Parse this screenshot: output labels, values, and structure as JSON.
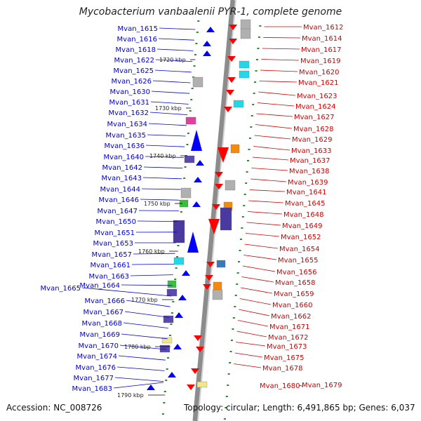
{
  "title": "Mycobacterium vanbaalenii PYR-1, complete genome",
  "accession_text": "Accession: NC_008726",
  "topology_text": "Topology: circular; Length: 6,491,865 bp; Genes: 6,037",
  "colors": {
    "left_label": "#0000cc",
    "right_label": "#cc0000",
    "forward_gene": "#0000ff",
    "reverse_gene": "#ff0000",
    "tick_green": "#2a8a2a",
    "backbone": "#8c8c8c"
  },
  "kbp_ticks": [
    "1720 kbp",
    "1730 kbp",
    "1740 kbp",
    "1750 kbp",
    "1760 kbp",
    "1770 kbp",
    "1780 kbp",
    "1790 kbp"
  ],
  "left_genes": [
    "Mvan_1615",
    "Mvan_1616",
    "Mvan_1618",
    "Mvan_1622",
    "Mvan_1625",
    "Mvan_1626",
    "Mvan_1630",
    "Mvan_1631",
    "Mvan_1632",
    "Mvan_1634",
    "Mvan_1635",
    "Mvan_1636",
    "Mvan_1640",
    "Mvan_1642",
    "Mvan_1643",
    "Mvan_1644",
    "Mvan_1646",
    "Mvan_1647",
    "Mvan_1650",
    "Mvan_1651",
    "Mvan_1653",
    "Mvan_1657",
    "Mvan_1661",
    "Mvan_1663",
    "Mvan_1664",
    "Mvan_1665",
    "Mvan_1666",
    "Mvan_1667",
    "Mvan_1668",
    "Mvan_1669",
    "Mvan_1670",
    "Mvan_1674",
    "Mvan_1676",
    "Mvan_1677",
    "Mvan_1683"
  ],
  "right_genes": [
    "Mvan_1612",
    "Mvan_1614",
    "Mvan_1617",
    "Mvan_1619",
    "Mvan_1620",
    "Mvan_1621",
    "Mvan_1623",
    "Mvan_1624",
    "Mvan_1627",
    "Mvan_1628",
    "Mvan_1629",
    "Mvan_1633",
    "Mvan_1637",
    "Mvan_1638",
    "Mvan_1639",
    "Mvan_1641",
    "Mvan_1645",
    "Mvan_1648",
    "Mvan_1649",
    "Mvan_1652",
    "Mvan_1654",
    "Mvan_1655",
    "Mvan_1656",
    "Mvan_1658",
    "Mvan_1659",
    "Mvan_1660",
    "Mvan_1662",
    "Mvan_1671",
    "Mvan_1672",
    "Mvan_1673",
    "Mvan_1675",
    "Mvan_1678",
    "Mvan_1680",
    "Mvan_1679"
  ]
}
